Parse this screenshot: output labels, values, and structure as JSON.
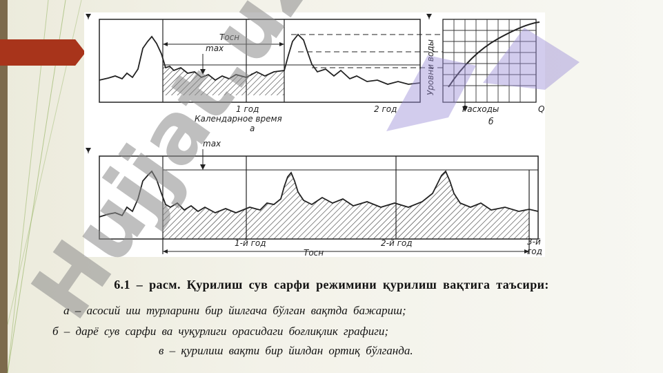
{
  "figure": {
    "top_chart": {
      "label_max": "max",
      "label_tosn": "Tосн",
      "label_year1": "1 год",
      "label_year2": "2 год",
      "label_axis": "Календарное  время",
      "label_sub": "а"
    },
    "side_chart": {
      "label_ylabel": "Уровни воды",
      "label_xlabel": "Расходы",
      "label_q": "Q",
      "label_sub": "б"
    },
    "bottom_chart": {
      "label_max": "max",
      "label_year1": "1-й год",
      "label_year2": "2-й год",
      "label_year3": "3-й",
      "label_year3b": "год",
      "label_tosn": "Tосн"
    }
  },
  "watermark": {
    "text": "Hujjat.uz",
    "colors": [
      "#8c8c8c",
      "#9b8fd6"
    ]
  },
  "caption": {
    "title": "6.1 – расм.  Қурилиш  сув  сарфи  режимини  қурилиш  вақтига  таъсири:",
    "line_a": "а – асосий  иш  турларини  бир  йилгача бўлган  вақтда  бажариш;",
    "line_b": "б – дарё  сув  сарфи   ва  чуқурлиги  орасидаги  боғлиқлик  графиги;",
    "line_c": "в – қурилиш  вақти  бир  йилдан  ортиқ  бўлганда."
  },
  "colors": {
    "accent_red": "#a8341b",
    "side_bar": "#7c6a4c",
    "green_lines": "#6b9e3a"
  }
}
